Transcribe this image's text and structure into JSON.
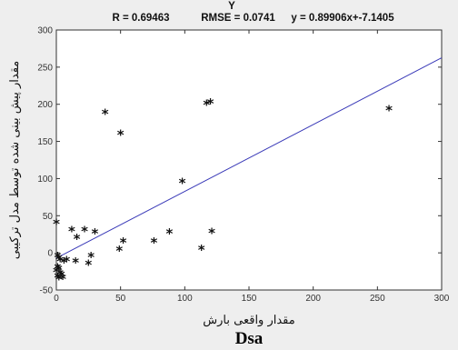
{
  "chart_data": {
    "type": "scatter",
    "stats_line": {
      "r": "R = 0.69463",
      "rmse": "RMSE = 0.0741",
      "equation": "y = 0.89906x+-7.1405"
    },
    "xlabel": "مقدار واقعی بارش",
    "ylabel": "مقدار پیش بینی شده توسط مدل ترکیبی",
    "caption": "Dsa",
    "xlim": [
      0,
      300
    ],
    "ylim": [
      -50,
      300
    ],
    "x_ticks": [
      0,
      50,
      100,
      150,
      200,
      250,
      300
    ],
    "y_ticks": [
      -50,
      0,
      50,
      100,
      150,
      200,
      250,
      300
    ],
    "grid": false,
    "fit_line": {
      "slope": 0.89906,
      "intercept": -7.1405
    },
    "marker": "*",
    "colors": {
      "fit_line": "#3a3ab8",
      "points": "#111111",
      "axes": "#333333",
      "plot_background": "#ffffff"
    },
    "points": [
      [
        0,
        40
      ],
      [
        1,
        -5
      ],
      [
        2,
        -8
      ],
      [
        3,
        -10
      ],
      [
        1,
        -20
      ],
      [
        2,
        -22
      ],
      [
        0,
        -25
      ],
      [
        3,
        -28
      ],
      [
        1,
        -32
      ],
      [
        4,
        -30
      ],
      [
        5,
        -34
      ],
      [
        2,
        -35
      ],
      [
        6,
        -12
      ],
      [
        8,
        -10
      ],
      [
        12,
        30
      ],
      [
        16,
        20
      ],
      [
        15,
        -12
      ],
      [
        22,
        30
      ],
      [
        25,
        -15
      ],
      [
        27,
        -5
      ],
      [
        30,
        27
      ],
      [
        38,
        188
      ],
      [
        49,
        4
      ],
      [
        50,
        160
      ],
      [
        52,
        15
      ],
      [
        76,
        15
      ],
      [
        88,
        27
      ],
      [
        98,
        95
      ],
      [
        113,
        5
      ],
      [
        117,
        200
      ],
      [
        120,
        202
      ],
      [
        121,
        28
      ],
      [
        259,
        193
      ]
    ]
  }
}
